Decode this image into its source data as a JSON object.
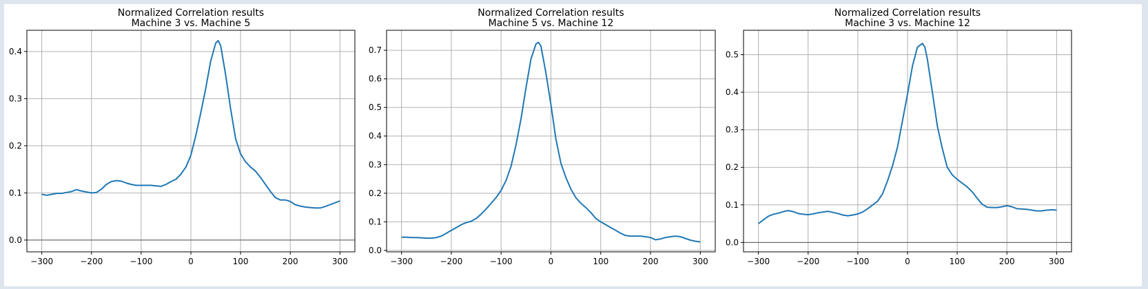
{
  "figure": {
    "background": "#dfe5ee",
    "panel_color": "#ffffff",
    "line_color": "#1f77b4",
    "grid_color": "#b0b0b0"
  },
  "chart_data": [
    {
      "type": "line",
      "title": "Normalized Correlation results",
      "subtitle": "Machine 3 vs. Machine 5",
      "xlabel": "",
      "ylabel": "",
      "xlim": [
        -330,
        330
      ],
      "ylim": [
        -0.025,
        0.445
      ],
      "xticks": [
        -300,
        -200,
        -100,
        0,
        100,
        200,
        300
      ],
      "yticks": [
        0.0,
        0.1,
        0.2,
        0.3,
        0.4
      ],
      "ytick_labels": [
        "0.0",
        "0.1",
        "0.2",
        "0.3",
        "0.4"
      ],
      "grid": true,
      "zero_line": true,
      "x": [
        -300,
        -290,
        -280,
        -270,
        -260,
        -250,
        -240,
        -230,
        -220,
        -210,
        -200,
        -190,
        -180,
        -170,
        -160,
        -150,
        -140,
        -130,
        -120,
        -110,
        -100,
        -90,
        -80,
        -70,
        -60,
        -50,
        -40,
        -30,
        -20,
        -10,
        0,
        10,
        20,
        30,
        40,
        50,
        55,
        60,
        70,
        80,
        90,
        100,
        110,
        120,
        130,
        140,
        150,
        160,
        170,
        180,
        190,
        200,
        210,
        220,
        230,
        240,
        250,
        260,
        270,
        280,
        290,
        300
      ],
      "y": [
        0.097,
        0.095,
        0.097,
        0.099,
        0.099,
        0.101,
        0.103,
        0.107,
        0.104,
        0.102,
        0.1,
        0.101,
        0.108,
        0.118,
        0.124,
        0.126,
        0.125,
        0.121,
        0.118,
        0.116,
        0.116,
        0.116,
        0.116,
        0.115,
        0.114,
        0.118,
        0.124,
        0.129,
        0.14,
        0.155,
        0.18,
        0.222,
        0.27,
        0.322,
        0.38,
        0.418,
        0.423,
        0.412,
        0.35,
        0.278,
        0.215,
        0.183,
        0.166,
        0.155,
        0.146,
        0.133,
        0.118,
        0.103,
        0.09,
        0.085,
        0.085,
        0.082,
        0.075,
        0.072,
        0.07,
        0.069,
        0.068,
        0.068,
        0.071,
        0.075,
        0.079,
        0.083
      ]
    },
    {
      "type": "line",
      "title": "Normalized Correlation results",
      "subtitle": "Machine 5 vs. Machine 12",
      "xlabel": "",
      "ylabel": "",
      "xlim": [
        -330,
        330
      ],
      "ylim": [
        -0.005,
        0.77
      ],
      "xticks": [
        -300,
        -200,
        -100,
        0,
        100,
        200,
        300
      ],
      "yticks": [
        0.0,
        0.1,
        0.2,
        0.3,
        0.4,
        0.5,
        0.6,
        0.7
      ],
      "ytick_labels": [
        "0.0",
        "0.1",
        "0.2",
        "0.3",
        "0.4",
        "0.5",
        "0.6",
        "0.7"
      ],
      "grid": true,
      "zero_line": false,
      "x": [
        -300,
        -290,
        -280,
        -270,
        -260,
        -250,
        -240,
        -230,
        -220,
        -210,
        -200,
        -190,
        -180,
        -170,
        -160,
        -150,
        -140,
        -130,
        -120,
        -110,
        -100,
        -90,
        -80,
        -70,
        -60,
        -50,
        -40,
        -30,
        -25,
        -20,
        -10,
        0,
        10,
        20,
        30,
        40,
        50,
        60,
        70,
        80,
        90,
        100,
        110,
        120,
        130,
        140,
        150,
        160,
        170,
        180,
        190,
        200,
        210,
        220,
        230,
        240,
        250,
        260,
        270,
        280,
        290,
        300
      ],
      "y": [
        0.046,
        0.046,
        0.045,
        0.045,
        0.044,
        0.043,
        0.043,
        0.045,
        0.05,
        0.06,
        0.07,
        0.08,
        0.09,
        0.097,
        0.102,
        0.112,
        0.127,
        0.145,
        0.165,
        0.185,
        0.21,
        0.245,
        0.295,
        0.37,
        0.46,
        0.57,
        0.67,
        0.722,
        0.728,
        0.715,
        0.62,
        0.51,
        0.39,
        0.305,
        0.255,
        0.215,
        0.185,
        0.165,
        0.15,
        0.133,
        0.112,
        0.1,
        0.09,
        0.08,
        0.07,
        0.06,
        0.052,
        0.05,
        0.05,
        0.05,
        0.048,
        0.045,
        0.037,
        0.04,
        0.045,
        0.048,
        0.05,
        0.048,
        0.042,
        0.036,
        0.032,
        0.03
      ]
    },
    {
      "type": "line",
      "title": "Normalized Correlation results",
      "subtitle": "Machine 3 vs. Machine 12",
      "xlabel": "",
      "ylabel": "",
      "xlim": [
        -330,
        330
      ],
      "ylim": [
        -0.025,
        0.565
      ],
      "xticks": [
        -300,
        -200,
        -100,
        0,
        100,
        200,
        300
      ],
      "yticks": [
        0.0,
        0.1,
        0.2,
        0.3,
        0.4,
        0.5
      ],
      "ytick_labels": [
        "0.0",
        "0.1",
        "0.2",
        "0.3",
        "0.4",
        "0.5"
      ],
      "grid": true,
      "zero_line": true,
      "x": [
        -300,
        -290,
        -280,
        -270,
        -260,
        -250,
        -240,
        -230,
        -220,
        -210,
        -200,
        -190,
        -180,
        -170,
        -160,
        -150,
        -140,
        -130,
        -120,
        -110,
        -100,
        -90,
        -80,
        -70,
        -60,
        -50,
        -40,
        -30,
        -20,
        -10,
        0,
        10,
        20,
        30,
        35,
        40,
        50,
        60,
        70,
        80,
        90,
        100,
        110,
        120,
        130,
        140,
        150,
        160,
        170,
        180,
        190,
        200,
        210,
        220,
        230,
        240,
        250,
        260,
        270,
        280,
        290,
        300
      ],
      "y": [
        0.05,
        0.06,
        0.07,
        0.075,
        0.078,
        0.082,
        0.085,
        0.082,
        0.077,
        0.075,
        0.074,
        0.076,
        0.079,
        0.081,
        0.083,
        0.08,
        0.077,
        0.073,
        0.071,
        0.073,
        0.076,
        0.081,
        0.09,
        0.1,
        0.11,
        0.13,
        0.165,
        0.205,
        0.255,
        0.325,
        0.395,
        0.47,
        0.52,
        0.53,
        0.52,
        0.488,
        0.4,
        0.31,
        0.25,
        0.2,
        0.18,
        0.168,
        0.158,
        0.148,
        0.135,
        0.118,
        0.102,
        0.094,
        0.093,
        0.093,
        0.095,
        0.098,
        0.095,
        0.09,
        0.089,
        0.088,
        0.086,
        0.084,
        0.084,
        0.086,
        0.087,
        0.086
      ]
    }
  ]
}
